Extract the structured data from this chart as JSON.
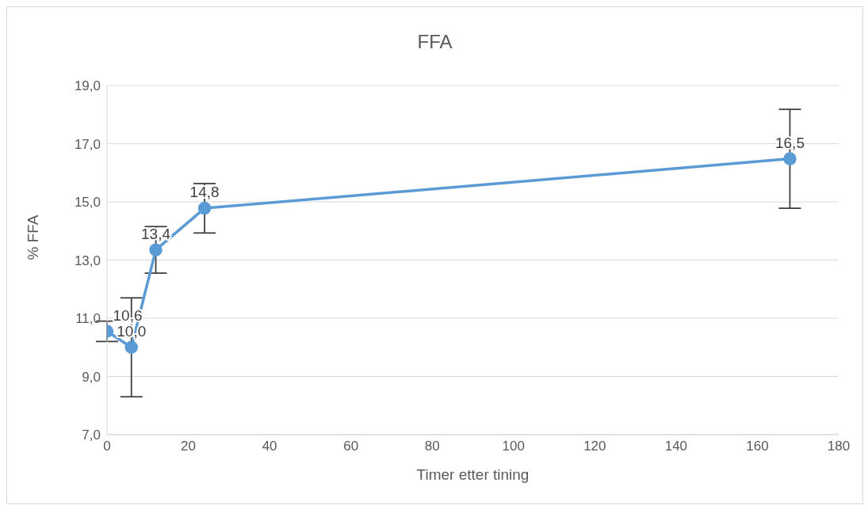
{
  "chart_data": {
    "type": "line",
    "title": "FFA",
    "xlabel": "Timer etter tining",
    "ylabel": "% FFA",
    "x": [
      0,
      6,
      12,
      24,
      168
    ],
    "series": [
      {
        "color": "#5b9bd5",
        "values": [
          10.55,
          10.0,
          13.35,
          14.78,
          16.48
        ],
        "errors": [
          0.35,
          1.7,
          0.8,
          0.85,
          1.7
        ],
        "value_labels": [
          "10,6",
          "10,0",
          "13,4",
          "14,8",
          "16,5"
        ]
      }
    ],
    "xlim": [
      0,
      180
    ],
    "xticks": [
      0,
      20,
      40,
      60,
      80,
      100,
      120,
      140,
      160,
      180
    ],
    "ylim": [
      7,
      19
    ],
    "yticks": [
      {
        "value": 7,
        "label": "7,0"
      },
      {
        "value": 9,
        "label": "9,0"
      },
      {
        "value": 11,
        "label": "11,0"
      },
      {
        "value": 13,
        "label": "13,0"
      },
      {
        "value": 15,
        "label": "15,0"
      },
      {
        "value": 17,
        "label": "17,0"
      },
      {
        "value": 19,
        "label": "19,0"
      }
    ],
    "grid": "y",
    "marker": "circle",
    "line_style": "solid",
    "legend": false
  }
}
